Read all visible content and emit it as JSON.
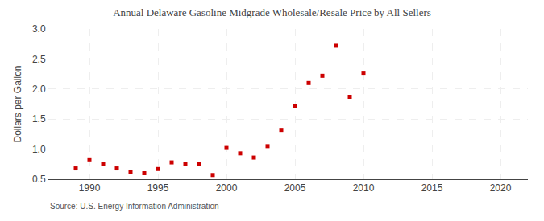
{
  "chart_data": {
    "type": "scatter",
    "title": "Annual Delaware Gasoline Midgrade Wholesale/Resale Price by All Sellers",
    "ylabel": "Dollars per Gallon",
    "annotations": [
      "Source: U.S. Energy Information Administration"
    ],
    "x": [
      1989,
      1990,
      1991,
      1992,
      1993,
      1994,
      1995,
      1996,
      1997,
      1998,
      1999,
      2000,
      2001,
      2002,
      2003,
      2004,
      2005,
      2006,
      2007,
      2008,
      2009,
      2010
    ],
    "values": [
      0.68,
      0.83,
      0.75,
      0.68,
      0.62,
      0.6,
      0.67,
      0.78,
      0.75,
      0.75,
      0.57,
      1.02,
      0.93,
      0.86,
      1.05,
      1.32,
      1.72,
      2.1,
      2.22,
      2.72,
      1.87,
      2.27
    ],
    "color": "#cc0000",
    "marker": "square",
    "xlim": [
      1987,
      2022
    ],
    "ylim": [
      0.5,
      3.0
    ],
    "xticks": [
      1990,
      1995,
      2000,
      2005,
      2010,
      2015,
      2020
    ],
    "yticks": [
      0.5,
      {
        "value": 1.0,
        "label": "1.0"
      },
      1.5,
      {
        "value": 2.0,
        "label": "2.0"
      },
      2.5,
      {
        "value": 3.0,
        "label": "3.0"
      }
    ],
    "grid": true
  }
}
